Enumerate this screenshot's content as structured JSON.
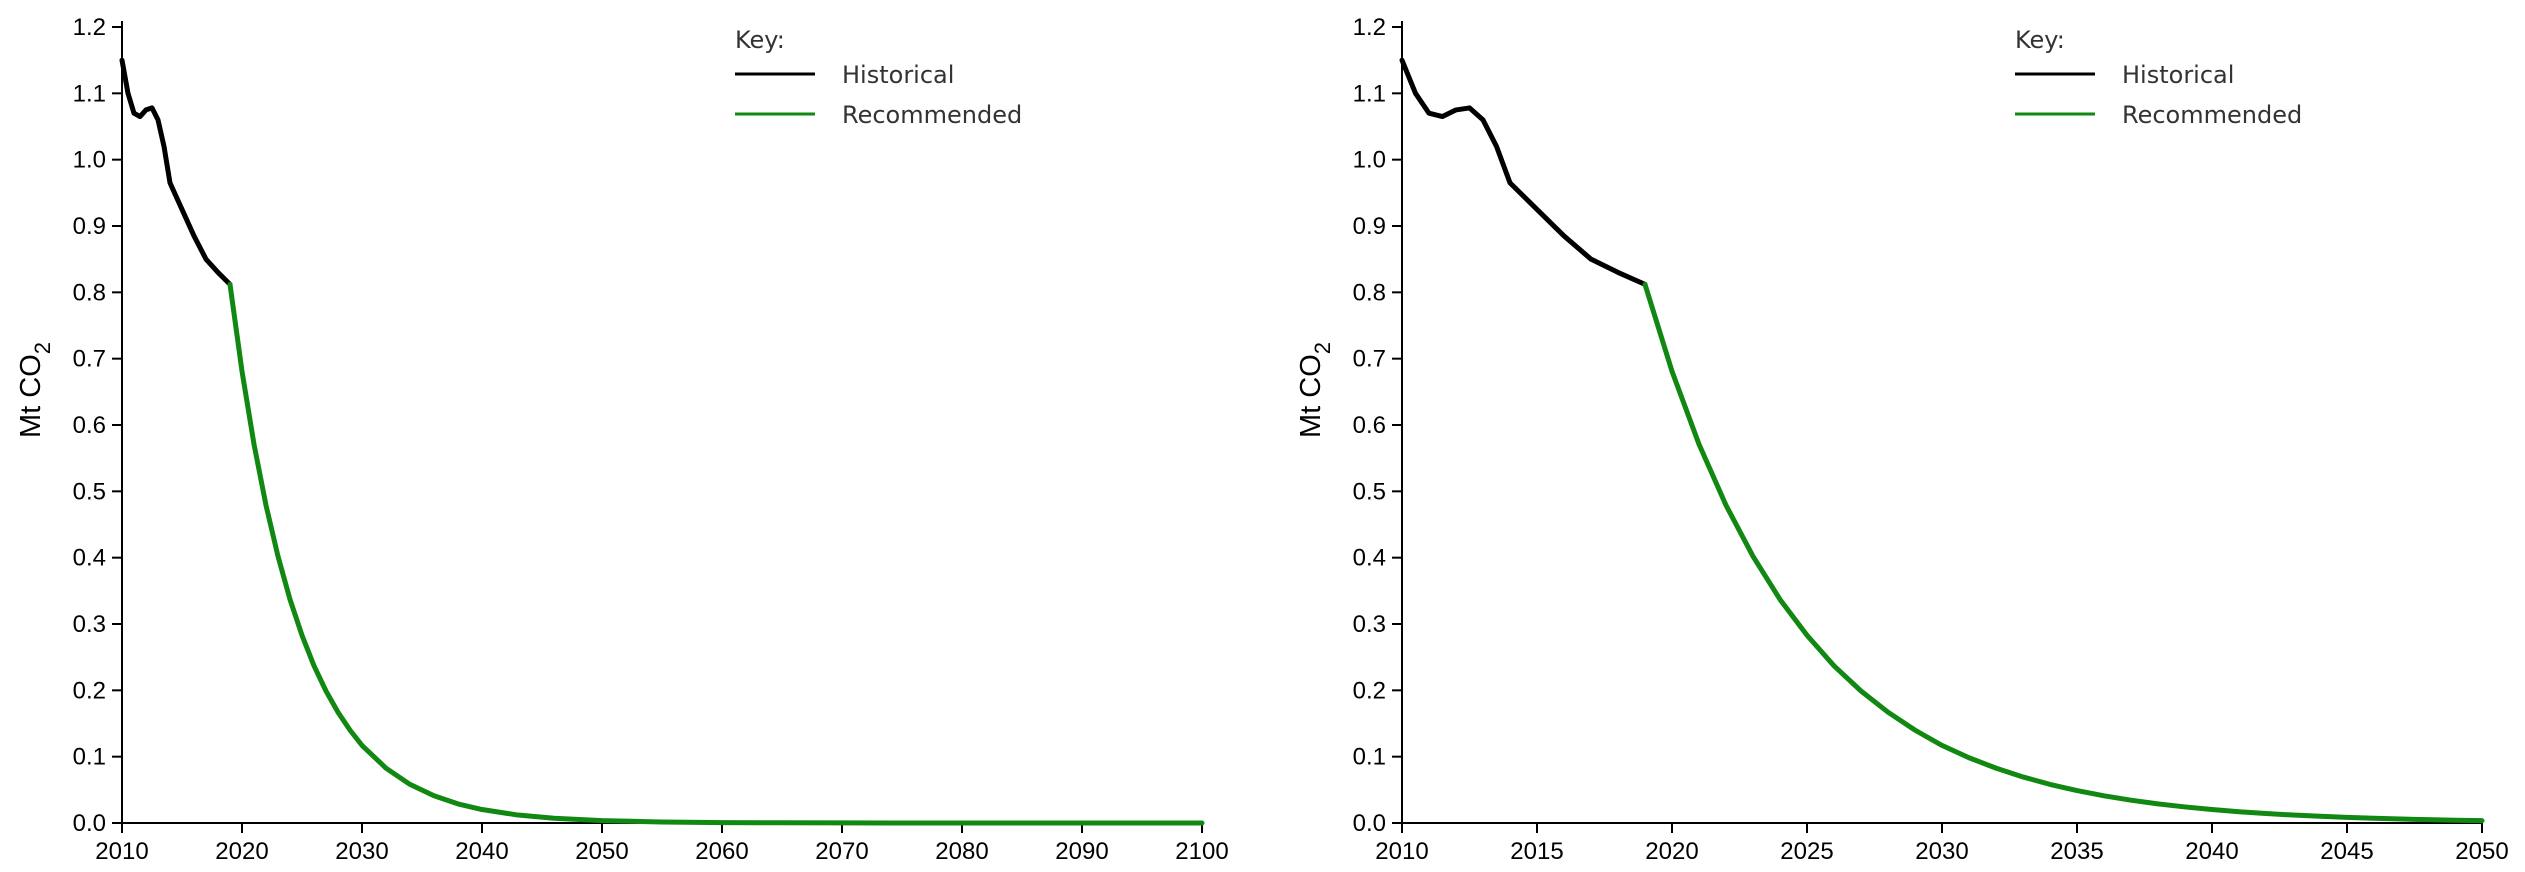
{
  "colors": {
    "historical": "#000000",
    "recommended": "#118811"
  },
  "chart_data": [
    {
      "type": "line",
      "ylabel": "Mt CO",
      "ylabel_subscript": "2",
      "xlim": [
        2010,
        2100
      ],
      "ylim": [
        0,
        1.2
      ],
      "x_ticks": [
        "2010",
        "2020",
        "2030",
        "2040",
        "2050",
        "2060",
        "2070",
        "2080",
        "2090",
        "2100"
      ],
      "y_ticks": [
        "0.0",
        "0.1",
        "0.2",
        "0.3",
        "0.4",
        "0.5",
        "0.6",
        "0.7",
        "0.8",
        "0.9",
        "1.0",
        "1.1",
        "1.2"
      ],
      "legend": {
        "title": "Key:",
        "entries": [
          "Historical",
          "Recommended"
        ]
      },
      "series": [
        {
          "name": "Historical",
          "x": [
            2010,
            2010.5,
            2011,
            2011.5,
            2012,
            2012.5,
            2013,
            2013.5,
            2014,
            2015,
            2016,
            2017,
            2018,
            2019
          ],
          "y": [
            1.15,
            1.1,
            1.07,
            1.065,
            1.075,
            1.078,
            1.06,
            1.02,
            0.965,
            0.925,
            0.885,
            0.85,
            0.83,
            0.812
          ]
        },
        {
          "name": "Recommended",
          "x": [
            2019,
            2020,
            2021,
            2022,
            2023,
            2024,
            2025,
            2026,
            2027,
            2028,
            2029,
            2030,
            2032,
            2034,
            2036,
            2038,
            2040,
            2043,
            2046,
            2050,
            2055,
            2060,
            2065,
            2070,
            2080,
            2090,
            2100
          ],
          "y": [
            0.812,
            0.681,
            0.571,
            0.479,
            0.402,
            0.337,
            0.283,
            0.237,
            0.199,
            0.167,
            0.14,
            0.117,
            0.0827,
            0.0582,
            0.041,
            0.0288,
            0.0203,
            0.012,
            0.0071,
            0.0035,
            0.0015,
            0.0006,
            0.0003,
            0.0001,
            0.0,
            0.0,
            0.0
          ]
        }
      ]
    },
    {
      "type": "line",
      "ylabel": "Mt CO",
      "ylabel_subscript": "2",
      "xlim": [
        2010,
        2050
      ],
      "ylim": [
        0,
        1.2
      ],
      "x_ticks": [
        "2010",
        "2015",
        "2020",
        "2025",
        "2030",
        "2035",
        "2040",
        "2045",
        "2050"
      ],
      "y_ticks": [
        "0.0",
        "0.1",
        "0.2",
        "0.3",
        "0.4",
        "0.5",
        "0.6",
        "0.7",
        "0.8",
        "0.9",
        "1.0",
        "1.1",
        "1.2"
      ],
      "legend": {
        "title": "Key:",
        "entries": [
          "Historical",
          "Recommended"
        ]
      },
      "series": [
        {
          "name": "Historical",
          "x": [
            2010,
            2010.5,
            2011,
            2011.5,
            2012,
            2012.5,
            2013,
            2013.5,
            2014,
            2015,
            2016,
            2017,
            2018,
            2019
          ],
          "y": [
            1.15,
            1.1,
            1.07,
            1.065,
            1.075,
            1.078,
            1.06,
            1.02,
            0.965,
            0.925,
            0.885,
            0.85,
            0.83,
            0.812
          ]
        },
        {
          "name": "Recommended",
          "x": [
            2019,
            2020,
            2021,
            2022,
            2023,
            2024,
            2025,
            2026,
            2027,
            2028,
            2029,
            2030,
            2031,
            2032,
            2033,
            2034,
            2035,
            2036,
            2037,
            2038,
            2039,
            2040,
            2041,
            2042,
            2043,
            2044,
            2045,
            2046,
            2047,
            2048,
            2049,
            2050
          ],
          "y": [
            0.812,
            0.681,
            0.571,
            0.479,
            0.402,
            0.337,
            0.283,
            0.237,
            0.199,
            0.167,
            0.14,
            0.117,
            0.0984,
            0.0827,
            0.0694,
            0.0582,
            0.0489,
            0.041,
            0.0344,
            0.0288,
            0.0242,
            0.0203,
            0.017,
            0.0143,
            0.012,
            0.0101,
            0.0085,
            0.0071,
            0.006,
            0.005,
            0.0042,
            0.0035
          ]
        }
      ]
    }
  ]
}
